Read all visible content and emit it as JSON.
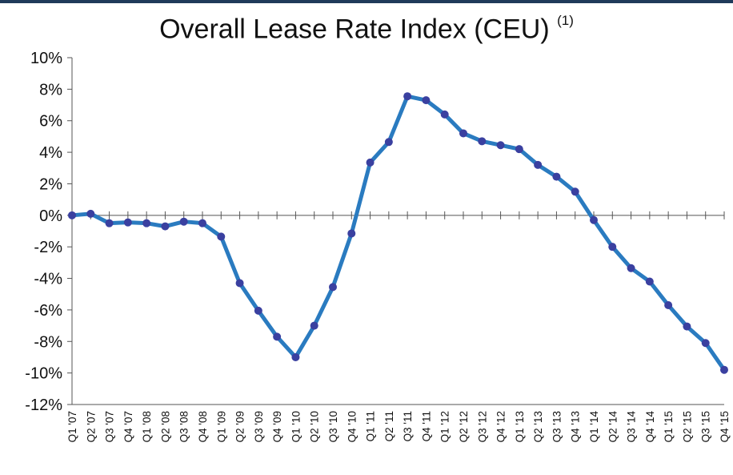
{
  "chart_data": {
    "type": "line",
    "title": "Overall Lease Rate Index (CEU)",
    "title_superscript": "(1)",
    "xlabel": "",
    "ylabel": "",
    "categories": [
      "Q1 '07",
      "Q2 '07",
      "Q3 '07",
      "Q4 '07",
      "Q1 '08",
      "Q2 '08",
      "Q3 '08",
      "Q4 '08",
      "Q1 '09",
      "Q2 '09",
      "Q3 '09",
      "Q4 '09",
      "Q1 '10",
      "Q2 '10",
      "Q3 '10",
      "Q4 '10",
      "Q1 '11",
      "Q2 '11",
      "Q3 '11",
      "Q4 '11",
      "Q1 '12",
      "Q2 '12",
      "Q3 '12",
      "Q4 '12",
      "Q1 '13",
      "Q2 '13",
      "Q3 '13",
      "Q4 '13",
      "Q1 '14",
      "Q2 '14",
      "Q3 '14",
      "Q4 '14",
      "Q1 '15",
      "Q2 '15",
      "Q3 '15",
      "Q4 '15"
    ],
    "series": [
      {
        "values": [
          0.0,
          0.1,
          -0.5,
          -0.45,
          -0.5,
          -0.7,
          -0.4,
          -0.5,
          -1.35,
          -4.3,
          -6.05,
          -7.7,
          -9.0,
          -7.0,
          -4.55,
          -1.15,
          3.35,
          4.65,
          7.55,
          7.3,
          6.4,
          5.2,
          4.7,
          4.45,
          4.2,
          3.2,
          2.45,
          1.5,
          -0.3,
          -2.0,
          -3.35,
          -4.2,
          -5.7,
          -7.05,
          -8.1,
          -9.8
        ]
      }
    ],
    "ylim": [
      -12,
      10
    ],
    "yticks": [
      10,
      8,
      6,
      4,
      2,
      0,
      -2,
      -4,
      -6,
      -8,
      -10,
      -12
    ],
    "ytick_labels": [
      "10%",
      "8%",
      "6%",
      "4%",
      "2%",
      "0%",
      "-2%",
      "-4%",
      "-6%",
      "-8%",
      "-10%",
      "-12%"
    ],
    "grid": false,
    "colors": {
      "line": "#2a7bc0",
      "marker": "#3a40a0",
      "axis": "#555555"
    }
  }
}
